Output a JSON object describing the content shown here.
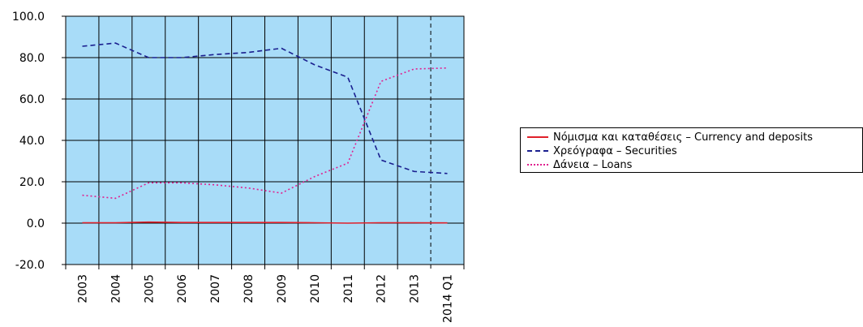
{
  "chart_data": {
    "type": "line",
    "categories": [
      "2003",
      "2004",
      "2005",
      "2006",
      "2007",
      "2008",
      "2009",
      "2010",
      "2011",
      "2012",
      "2013",
      "2014 Q1"
    ],
    "ylim": [
      -20,
      100
    ],
    "yticks": [
      "100.0",
      "80.0",
      "60.0",
      "40.0",
      "20.0",
      "0.0",
      "-20.0"
    ],
    "grid": true,
    "legend_position": "right",
    "plot_background": "#a8dcf8",
    "dashed_vertical_marker_between": [
      "2013",
      "2014 Q1"
    ],
    "series": [
      {
        "name": "Νόμισμα και καταθέσεις – Currency and deposits",
        "color": "#e0202a",
        "style": "solid",
        "values": [
          0.2,
          0.2,
          0.5,
          0.3,
          0.3,
          0.3,
          0.3,
          0.2,
          0.0,
          0.2,
          0.2,
          0.1
        ]
      },
      {
        "name": "Χρεόγραφα – Securities",
        "color": "#1a1f8f",
        "style": "dashed",
        "values": [
          85.5,
          87.0,
          80.0,
          80.0,
          81.5,
          82.5,
          84.5,
          76.5,
          70.5,
          30.5,
          25.0,
          24.0
        ]
      },
      {
        "name": "Δάνεια – Loans",
        "color": "#e0208f",
        "style": "dotted",
        "values": [
          13.5,
          12.0,
          19.5,
          19.5,
          18.5,
          17.0,
          14.5,
          22.5,
          29.0,
          68.5,
          74.5,
          75.0
        ]
      }
    ]
  }
}
